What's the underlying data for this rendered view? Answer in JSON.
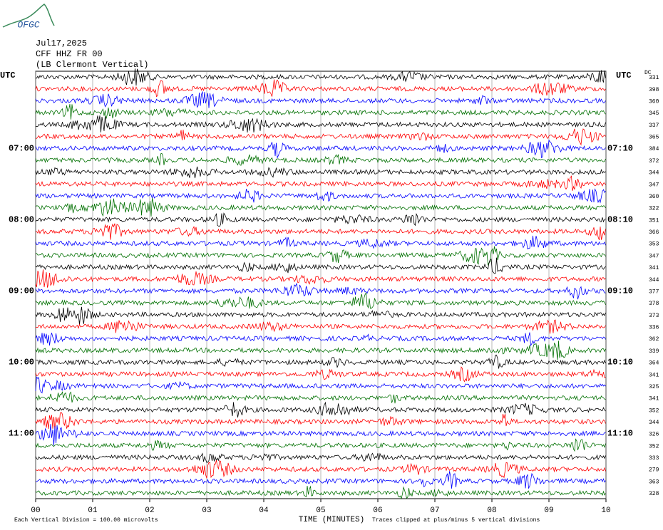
{
  "chart_data": {
    "type": "helicorder",
    "logo": "OFGC",
    "date": "Jul17,2025",
    "station": "CFF HHZ FR 00",
    "location": "(LB  Clermont Vertical)",
    "left_axis_label": "UTC",
    "right_axis_label": "UTC",
    "dc_label": "DC",
    "left_time_labels": [
      "07:00",
      "08:00",
      "09:00",
      "10:00",
      "11:00"
    ],
    "right_time_labels": [
      "07:10",
      "08:10",
      "09:10",
      "10:10",
      "11:10"
    ],
    "xlabel": "TIME (MINUTES)",
    "xlim": [
      0,
      10
    ],
    "xticks": [
      {
        "value": 0,
        "label": "00"
      },
      {
        "value": 1,
        "label": "01"
      },
      {
        "value": 2,
        "label": "02"
      },
      {
        "value": 3,
        "label": "03"
      },
      {
        "value": 4,
        "label": "04"
      },
      {
        "value": 5,
        "label": "05"
      },
      {
        "value": 6,
        "label": "06"
      },
      {
        "value": 7,
        "label": "07"
      },
      {
        "value": 8,
        "label": "08"
      },
      {
        "value": 9,
        "label": "09"
      },
      {
        "value": 10,
        "label": "10"
      }
    ],
    "grid": true,
    "trace_colors": [
      "#000000",
      "#ff0000",
      "#0000ff",
      "#007000"
    ],
    "dc_values": [
      331,
      398,
      360,
      345,
      337,
      365,
      384,
      372,
      344,
      347,
      360,
      322,
      351,
      366,
      353,
      347,
      341,
      344,
      377,
      378,
      373,
      336,
      362,
      339,
      364,
      341,
      325,
      341,
      352,
      344,
      326,
      352,
      333,
      279,
      363,
      328
    ],
    "footnote_scale": "Each Vertical Division =  100.00 microvolts",
    "footnote_clip": "Traces clipped at plus/minus 5 vertical divisions"
  }
}
